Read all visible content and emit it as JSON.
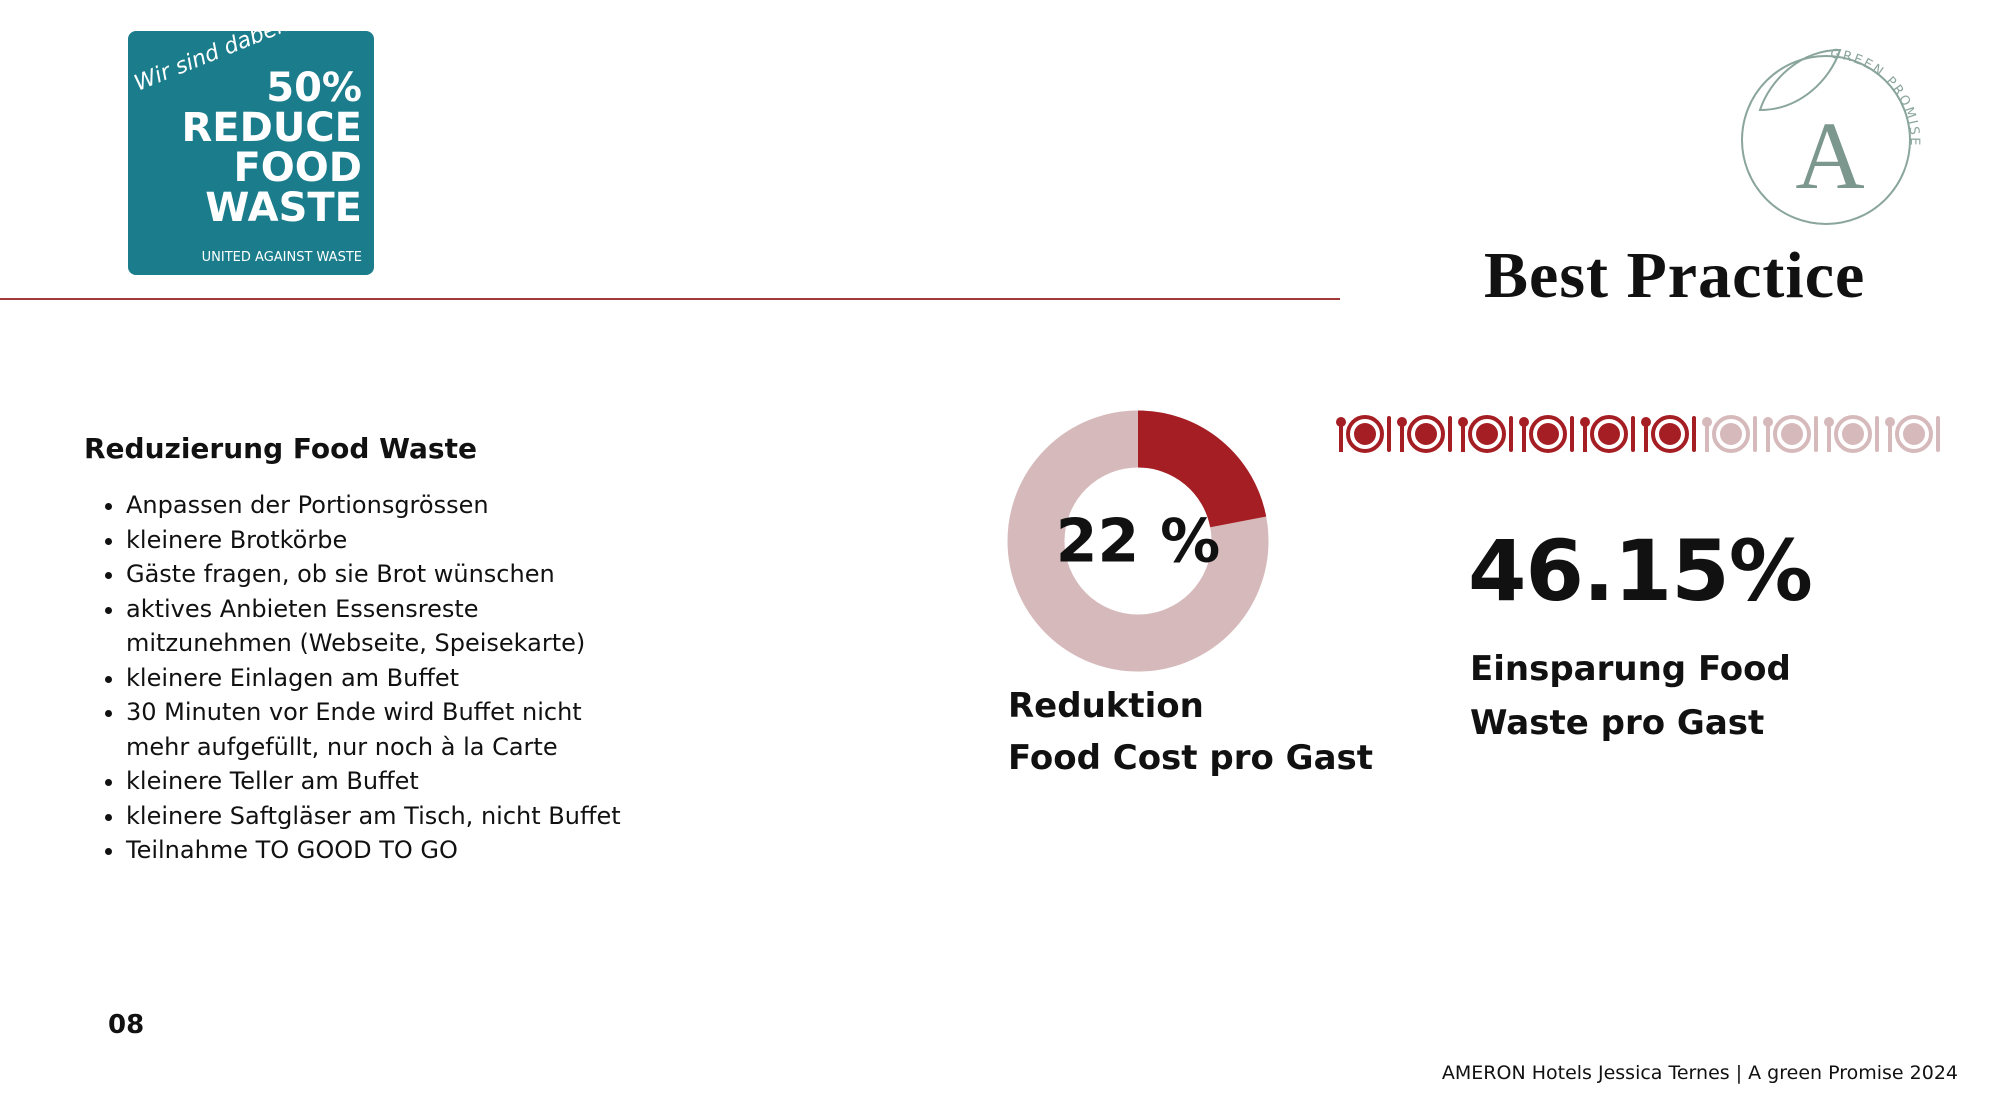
{
  "header": {
    "logo": {
      "tagline": "Wir sind dabei!",
      "percent": "50%",
      "line1": "REDUCE",
      "line2": "FOOD",
      "line3": "WASTE",
      "subline": "UNITED AGAINST WASTE"
    },
    "brand": {
      "letter": "A",
      "label": "GREEN PROMISE"
    },
    "title": "Best Practice"
  },
  "section": {
    "heading": "Reduzierung Food Waste",
    "items": [
      [
        "Anpassen der Portionsgrössen"
      ],
      [
        "kleinere Brotkörbe"
      ],
      [
        "Gäste fragen, ob sie Brot wünschen"
      ],
      [
        "aktives Anbieten Essensreste",
        "mitzunehmen (Webseite, Speisekarte)"
      ],
      [
        "kleinere Einlagen am Buffet"
      ],
      [
        "30 Minuten vor Ende wird Buffet nicht",
        "mehr aufgefüllt, nur noch à la Carte"
      ],
      [
        "kleinere Teller am Buffet"
      ],
      [
        "kleinere Saftgläser am Tisch, nicht Buffet"
      ],
      [
        "Teilnahme TO GOOD TO GO"
      ]
    ]
  },
  "stats": [
    {
      "value": 22,
      "label": "22 %",
      "caption": [
        "Reduktion",
        "Food Cost pro Gast"
      ]
    },
    {
      "value": 46.15,
      "label": "46.15%",
      "caption": [
        "Einsparung Food",
        "Waste pro Gast"
      ]
    }
  ],
  "page_number": "08",
  "footer": "AMERON Hotels Jessica Ternes |  A green Promise 2024"
}
